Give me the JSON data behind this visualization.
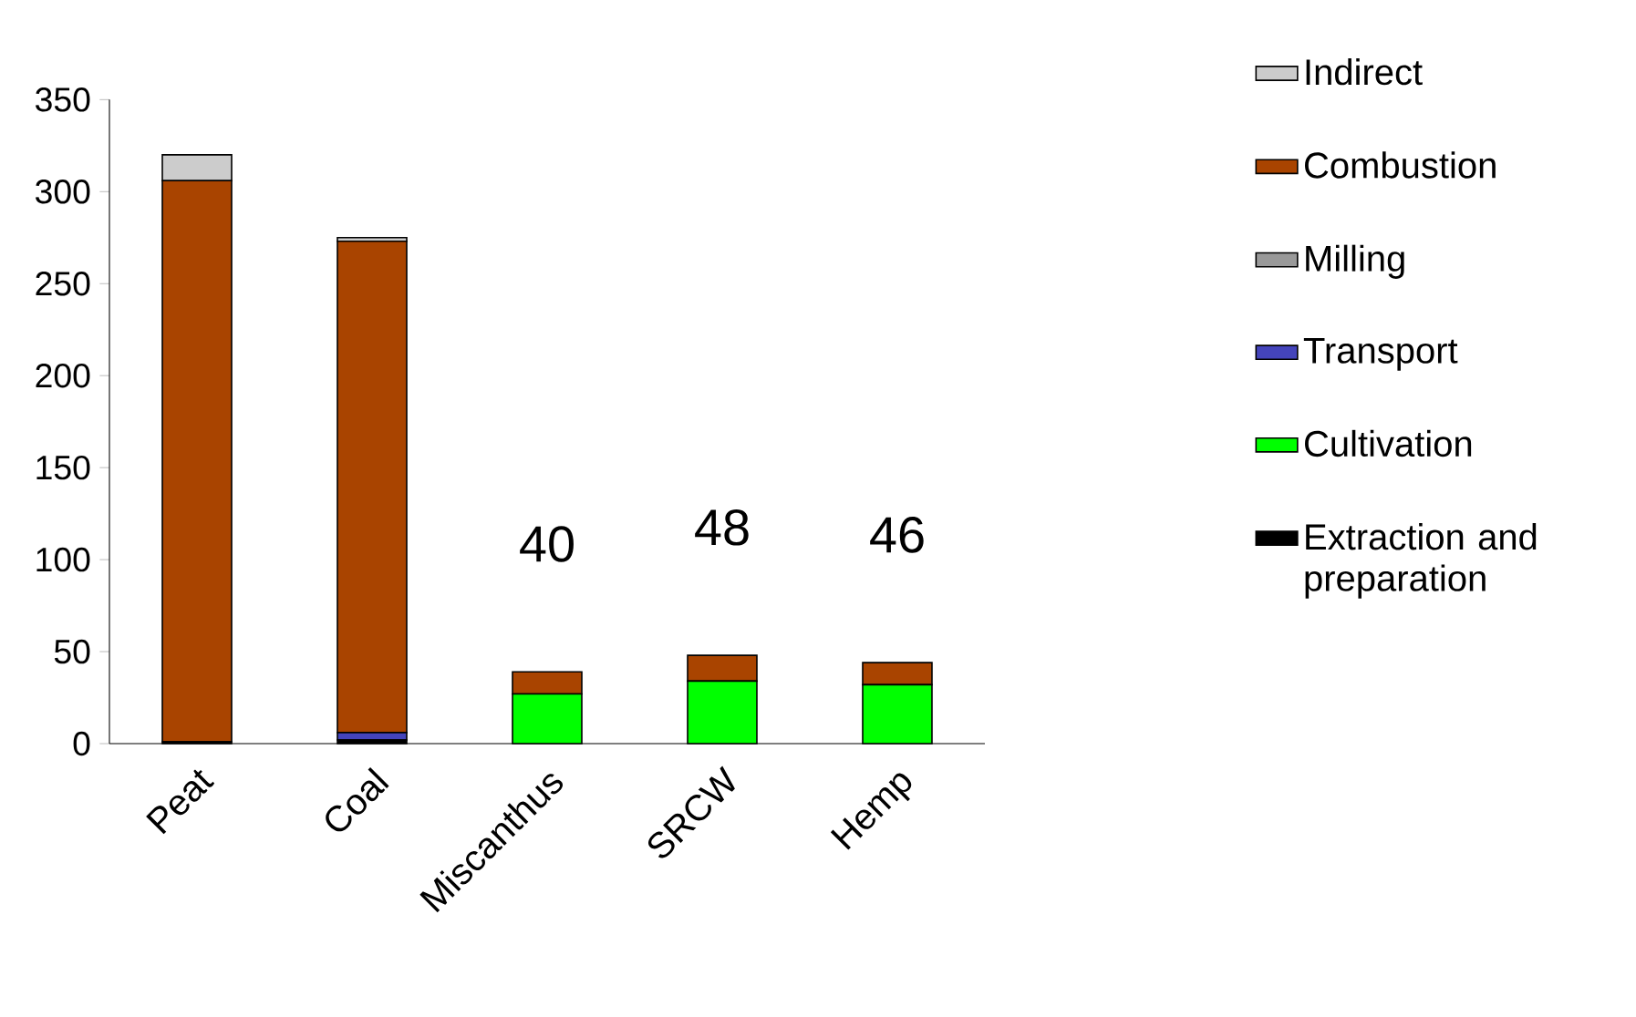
{
  "chart_data": {
    "type": "bar",
    "stacked": true,
    "categories": [
      "Peat",
      "Coal",
      "Miscanthus",
      "SRCW",
      "Hemp"
    ],
    "series": [
      {
        "name": "Extraction and preparation",
        "color": "#000000",
        "values": [
          1,
          2,
          0,
          0,
          0
        ]
      },
      {
        "name": "Cultivation",
        "color": "#00ff00",
        "values": [
          0,
          0,
          27,
          34,
          32
        ]
      },
      {
        "name": "Transport",
        "color": "#4444bb",
        "values": [
          0,
          4,
          0,
          0,
          0
        ]
      },
      {
        "name": "Milling",
        "color": "#999999",
        "values": [
          0,
          0,
          0,
          0,
          0
        ]
      },
      {
        "name": "Combustion",
        "color": "#a94400",
        "values": [
          305,
          267,
          12,
          14,
          12
        ]
      },
      {
        "name": "Indirect",
        "color": "#cccccc",
        "values": [
          14,
          2,
          0,
          0,
          0
        ]
      }
    ],
    "totals": [
      null,
      null,
      "40",
      "48",
      "46"
    ],
    "ylim": [
      0,
      350
    ],
    "yticks": [
      0,
      50,
      100,
      150,
      200,
      250,
      300,
      350
    ],
    "grid": false,
    "legend": "right"
  }
}
